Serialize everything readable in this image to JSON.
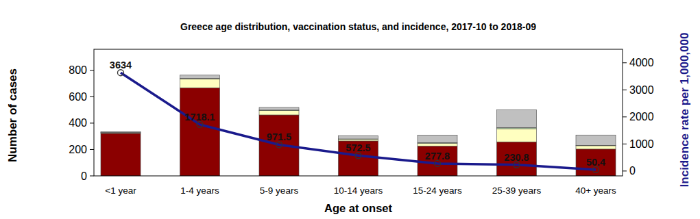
{
  "chart_data": {
    "type": "bar",
    "title": "Greece age distribution, vaccination status, and incidence, 2017-10 to 2018-09",
    "x_label": "Age at onset",
    "y_label": "Number of cases",
    "y2_label": "Incidence rate per 1,000,000",
    "categories": [
      "<1 year",
      "1-4 years",
      "5-9 years",
      "10-14 years",
      "15-24 years",
      "25-39 years",
      "40+ years"
    ],
    "stacked": true,
    "ylim": [
      0,
      960
    ],
    "yticks": [
      0,
      200,
      400,
      600,
      800
    ],
    "y2lim": [
      -180,
      4500
    ],
    "y2ticks": [
      0,
      1000,
      2000,
      3000,
      4000
    ],
    "series": [
      {
        "color": "#8b0000",
        "values": [
          322,
          668,
          462,
          265,
          226,
          258,
          203
        ]
      },
      {
        "color": "#ffffc0",
        "values": [
          5,
          68,
          34,
          12,
          22,
          100,
          26
        ]
      },
      {
        "color": "#b8e0b0",
        "values": [
          2,
          3,
          3,
          3,
          4,
          8,
          3
        ]
      },
      {
        "color": "#c0c0c0",
        "values": [
          5,
          25,
          20,
          25,
          57,
          135,
          78
        ]
      },
      {
        "type": "line",
        "axis": "y2",
        "color": "#1a1a8c",
        "marker": "circle",
        "data_labels": true,
        "values": [
          3634,
          1718.1,
          971.5,
          572.5,
          277.8,
          230.8,
          50.4
        ]
      }
    ]
  }
}
